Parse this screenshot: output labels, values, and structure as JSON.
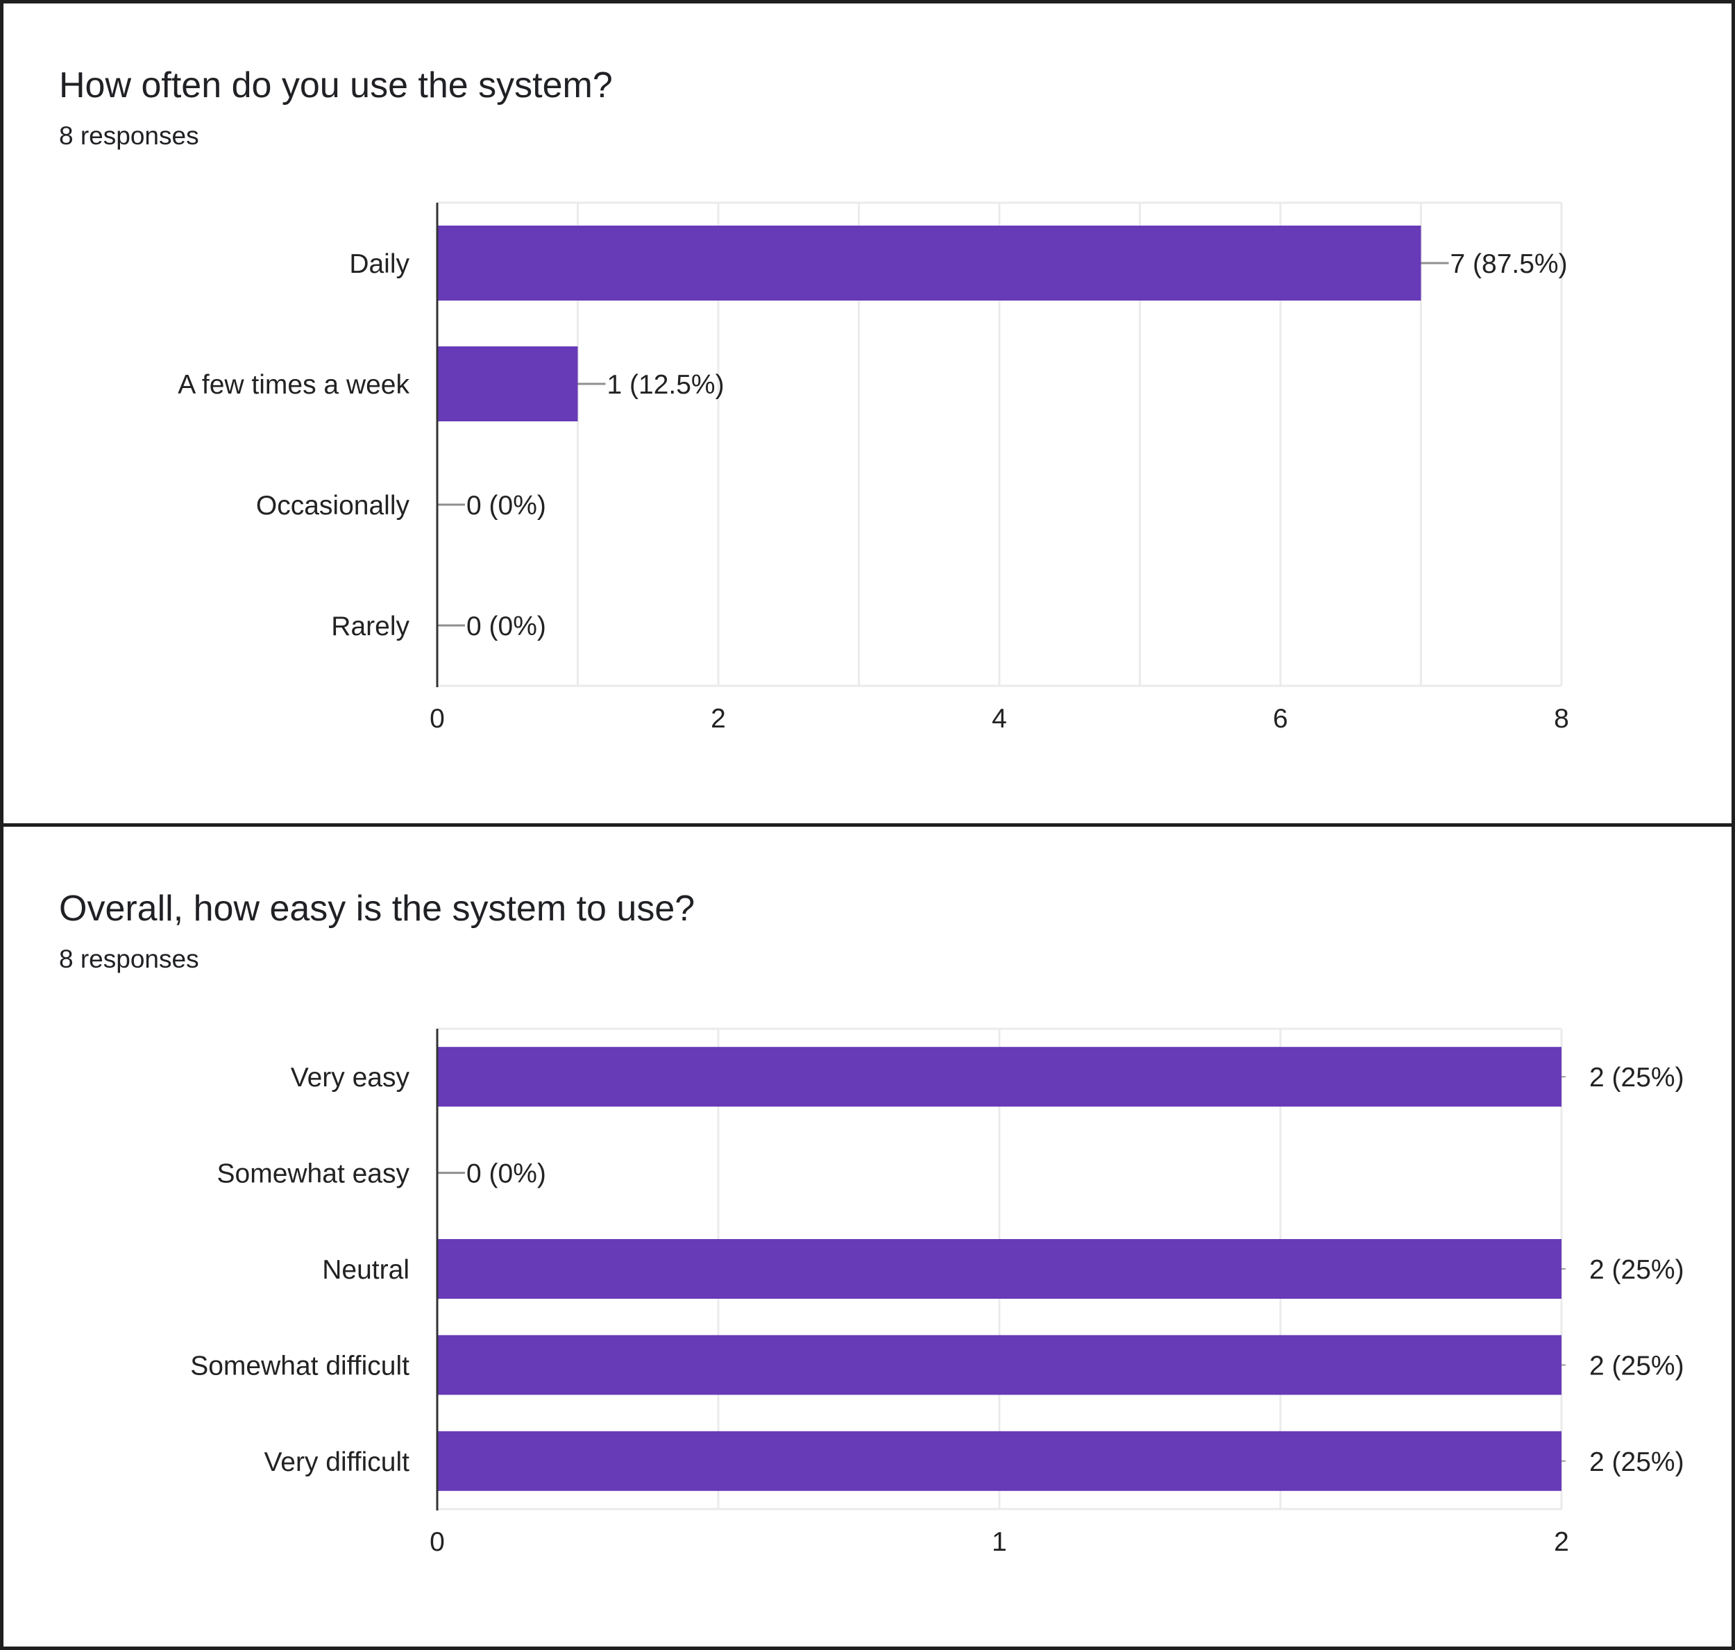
{
  "charts": [
    {
      "question": "How often do you use the system?",
      "responses_label": "8 responses",
      "chart_data": {
        "type": "bar",
        "orientation": "horizontal",
        "categories": [
          "Daily",
          "A few times a week",
          "Occasionally",
          "Rarely"
        ],
        "values": [
          7,
          1,
          0,
          0
        ],
        "value_labels": [
          "7 (87.5%)",
          "1 (12.5%)",
          "0 (0%)",
          "0 (0%)"
        ],
        "xlim": [
          0,
          8
        ],
        "xticks": [
          0,
          2,
          4,
          6,
          8
        ],
        "grid": true,
        "bar_color": "#673ab7"
      }
    },
    {
      "question": "Overall, how easy is the system to use?",
      "responses_label": "8 responses",
      "chart_data": {
        "type": "bar",
        "orientation": "horizontal",
        "categories": [
          "Very easy",
          "Somewhat easy",
          "Neutral",
          "Somewhat difficult",
          "Very difficult"
        ],
        "values": [
          2,
          0,
          2,
          2,
          2
        ],
        "value_labels": [
          "2 (25%)",
          "0 (0%)",
          "2 (25%)",
          "2 (25%)",
          "2 (25%)"
        ],
        "xlim": [
          0,
          2
        ],
        "xticks": [
          0,
          1,
          2
        ],
        "grid": true,
        "bar_color": "#673ab7"
      }
    }
  ]
}
